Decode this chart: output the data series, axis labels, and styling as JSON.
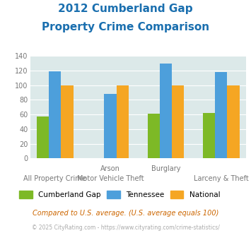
{
  "title_line1": "2012 Cumberland Gap",
  "title_line2": "Property Crime Comparison",
  "top_labels": [
    "",
    "Arson",
    "Burglary",
    ""
  ],
  "bot_labels": [
    "All Property Crime",
    "Motor Vehicle Theft",
    "",
    "Larceny & Theft"
  ],
  "groups": [
    {
      "name": "Cumberland Gap",
      "values": [
        57,
        0,
        61,
        62
      ],
      "color": "#7db926"
    },
    {
      "name": "Tennessee",
      "values": [
        119,
        88,
        130,
        118
      ],
      "color": "#4d9fdb"
    },
    {
      "name": "National",
      "values": [
        100,
        100,
        100,
        100
      ],
      "color": "#f5a623"
    }
  ],
  "ylim": [
    0,
    140
  ],
  "yticks": [
    0,
    20,
    40,
    60,
    80,
    100,
    120,
    140
  ],
  "plot_bg": "#dce9e9",
  "title_color": "#1a6faf",
  "tick_color": "#777777",
  "footnote1": "Compared to U.S. average. (U.S. average equals 100)",
  "footnote2": "© 2025 CityRating.com - https://www.cityrating.com/crime-statistics/",
  "footnote1_color": "#cc6600",
  "footnote2_color": "#aaaaaa"
}
